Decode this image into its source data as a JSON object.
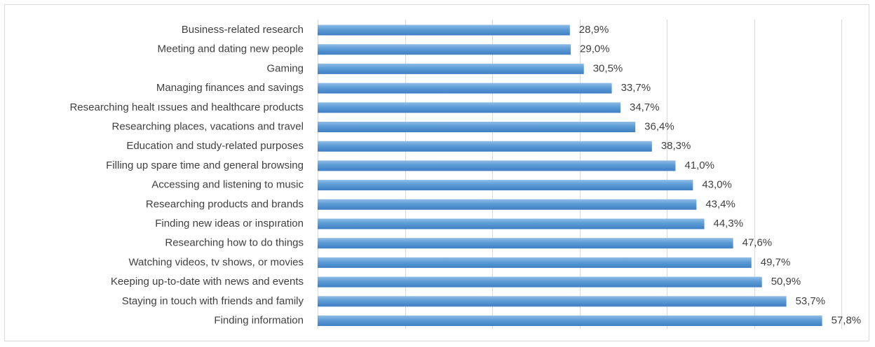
{
  "chart_data": {
    "type": "bar",
    "orientation": "horizontal",
    "categories": [
      "Business-related research",
      "Meeting and dating new people",
      "Gaming",
      "Managing finances and savings",
      "Researching healt ıssues and healthcare products",
      "Researching places, vacations and travel",
      "Education and study-related purposes",
      "Filling up spare time and general browsing",
      "Accessing and listening to music",
      "Researching products and brands",
      "Finding new ideas or inspıration",
      "Researching how to do things",
      "Watching videos, tv shows, or movies",
      "Keeping up-to-date with news and events",
      "Staying in touch with friends and family",
      "Finding information"
    ],
    "values": [
      28.9,
      29.0,
      30.5,
      33.7,
      34.7,
      36.4,
      38.3,
      41.0,
      43.0,
      43.4,
      44.3,
      47.6,
      49.7,
      50.9,
      53.7,
      57.8
    ],
    "value_labels": [
      "28,9%",
      "29,0%",
      "30,5%",
      "33,7%",
      "34,7%",
      "36,4%",
      "38,3%",
      "41,0%",
      "43,0%",
      "43,4%",
      "44,3%",
      "47,6%",
      "49,7%",
      "50,9%",
      "53,7%",
      "57,8%"
    ],
    "title": "",
    "xlabel": "",
    "ylabel": "",
    "xlim": [
      0,
      60
    ],
    "grid_interval": 10,
    "grid": true,
    "axis_tick_labels_shown": false,
    "legend": "none",
    "bar_color": "#5b9bd5",
    "bar_gradient_dark": "#3f7fc4",
    "bar_gradient_light": "#8fbde6"
  }
}
